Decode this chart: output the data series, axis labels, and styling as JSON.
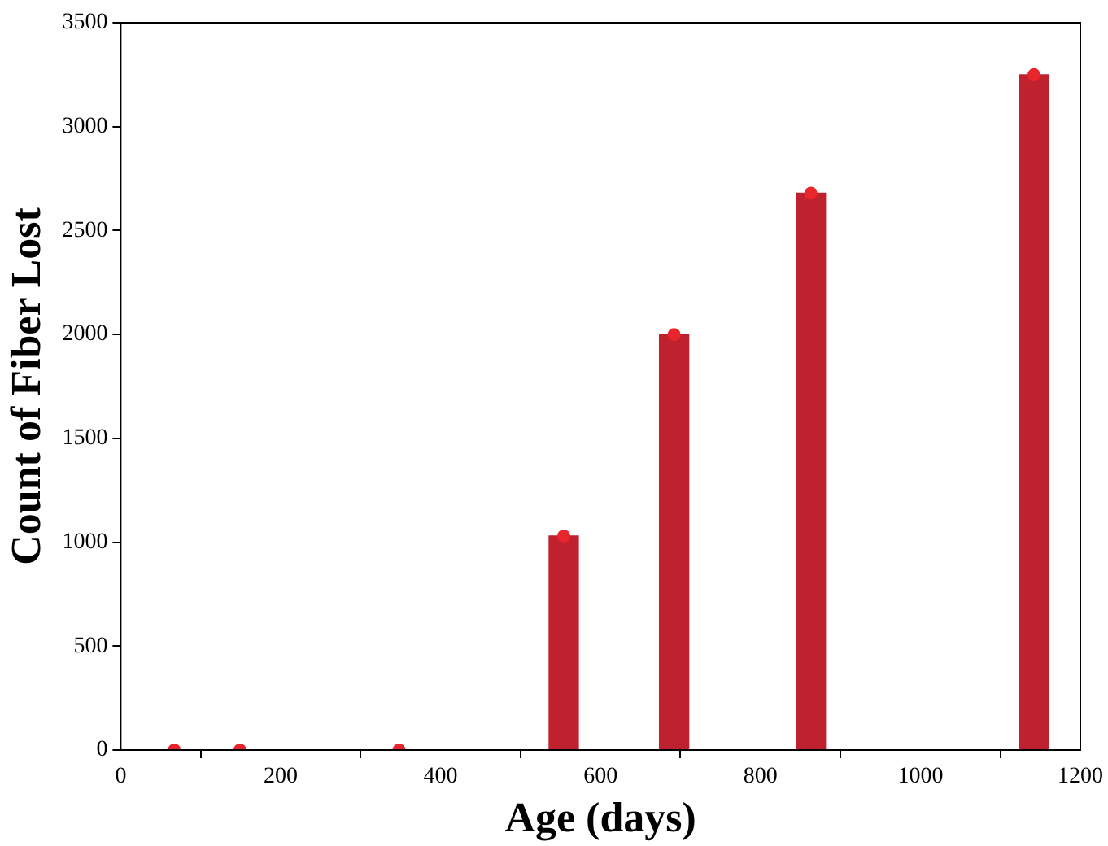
{
  "chart_data": {
    "type": "bar",
    "xlabel": "Age (days)",
    "ylabel": "Count of Fiber Lost",
    "x": [
      67,
      149,
      348,
      554,
      692,
      863,
      1142
    ],
    "series": [
      {
        "color": "#c0212f",
        "values": [
          0,
          0,
          0,
          1030,
          2000,
          2680,
          3250
        ]
      },
      {
        "type": "scatter",
        "color": "#e8262b",
        "values": [
          0,
          0,
          0,
          1030,
          2000,
          2680,
          3250
        ]
      }
    ],
    "xlim": [
      0,
      1200
    ],
    "xticks": [
      0,
      200,
      400,
      600,
      800,
      1000,
      1200
    ],
    "ylim": [
      0,
      3500
    ],
    "yticks": [
      0,
      500,
      1000,
      1500,
      2000,
      2500,
      3000,
      3500
    ],
    "grid": false,
    "legend": false,
    "marker": "circle"
  }
}
